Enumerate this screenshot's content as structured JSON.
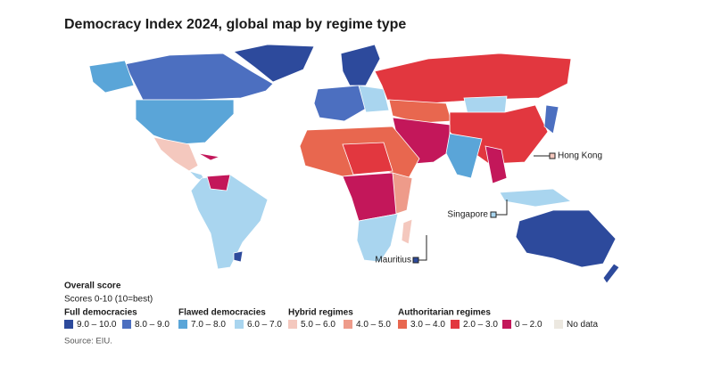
{
  "title": "Democracy Index 2024, global map by regime type",
  "callouts": [
    "Hong Kong",
    "Singapore",
    "Mauritius"
  ],
  "legend": {
    "title": "Overall score",
    "subtitle": "Scores 0-10 (10=best)",
    "groups": [
      {
        "name": "Full democracies",
        "items": [
          {
            "label": "9.0 – 10.0",
            "color": "#2d4a9c"
          },
          {
            "label": "8.0 – 9.0",
            "color": "#4c6fc0"
          }
        ]
      },
      {
        "name": "Flawed democracies",
        "items": [
          {
            "label": "7.0 – 8.0",
            "color": "#5aa5d8"
          },
          {
            "label": "6.0 – 7.0",
            "color": "#a9d5ef"
          }
        ]
      },
      {
        "name": "Hybrid regimes",
        "items": [
          {
            "label": "5.0 – 6.0",
            "color": "#f4c8be"
          },
          {
            "label": "4.0 – 5.0",
            "color": "#ee9b8a"
          }
        ]
      },
      {
        "name": "Authoritarian regimes",
        "items": [
          {
            "label": "3.0 – 4.0",
            "color": "#e8674f"
          },
          {
            "label": "2.0 – 3.0",
            "color": "#e2373f"
          },
          {
            "label": "0 – 2.0",
            "color": "#c3175a"
          },
          {
            "label": "No data",
            "color": "#ece8e0"
          }
        ]
      }
    ]
  },
  "source": "Source: EIU."
}
